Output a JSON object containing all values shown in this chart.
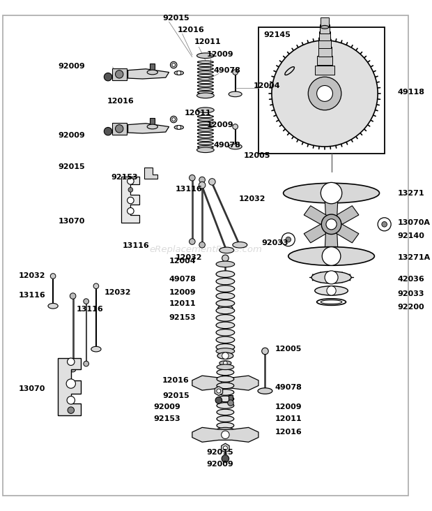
{
  "bg_color": "#ffffff",
  "watermark": "eReplacementParts.com",
  "figsize": [
    6.2,
    7.32
  ],
  "dpi": 100
}
